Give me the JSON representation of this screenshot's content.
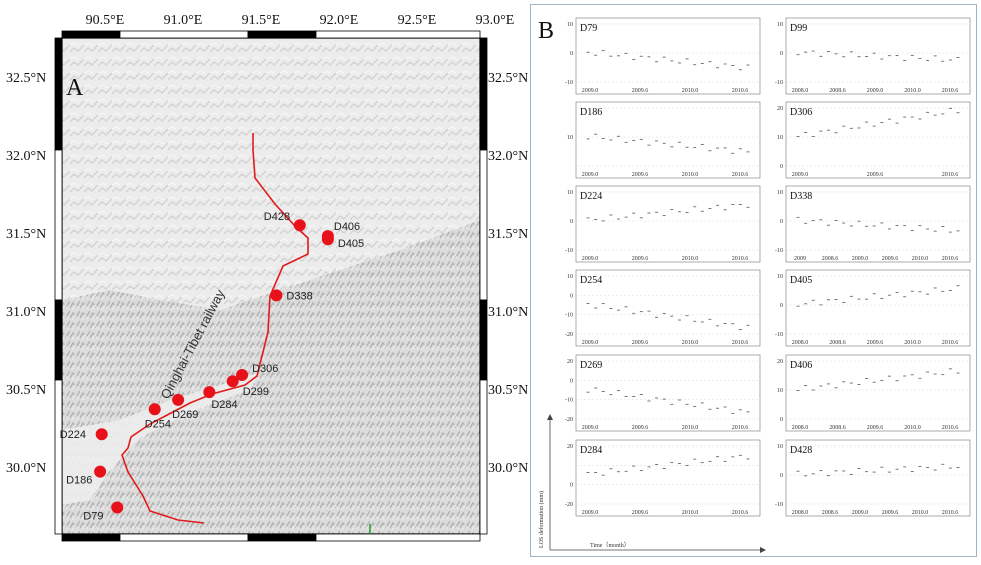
{
  "panel_a_label": "A",
  "panel_b_label": "B",
  "railway_label": "Qinghai-Tibet railway",
  "lon_labels": [
    "90.5°E",
    "91.0°E",
    "91.5°E",
    "92.0°E",
    "92.5°E",
    "93.0°E"
  ],
  "lat_labels": [
    "32.5°N",
    "32.0°N",
    "31.5°N",
    "31.0°N",
    "30.5°N",
    "30.0°N"
  ],
  "sites": [
    {
      "name": "D428",
      "lon": 91.8,
      "lat": 31.55
    },
    {
      "name": "D406",
      "lon": 91.98,
      "lat": 31.48
    },
    {
      "name": "D405",
      "lon": 91.98,
      "lat": 31.46
    },
    {
      "name": "D338",
      "lon": 91.65,
      "lat": 31.1
    },
    {
      "name": "D306",
      "lon": 91.43,
      "lat": 30.59
    },
    {
      "name": "D299",
      "lon": 91.37,
      "lat": 30.55
    },
    {
      "name": "D284",
      "lon": 91.22,
      "lat": 30.48
    },
    {
      "name": "D269",
      "lon": 91.02,
      "lat": 30.43
    },
    {
      "name": "D254",
      "lon": 90.87,
      "lat": 30.37
    },
    {
      "name": "D224",
      "lon": 90.53,
      "lat": 30.21
    },
    {
      "name": "D186",
      "lon": 90.52,
      "lat": 29.97
    },
    {
      "name": "D79",
      "lon": 90.63,
      "lat": 29.74
    }
  ],
  "ts_common": {
    "ylabel": "LOS deformation (mm)",
    "xlabel": "Time（month）"
  },
  "ts_charts": [
    {
      "name": "D79",
      "yticks": [
        "10",
        "0",
        "-10"
      ],
      "xticks": [
        "2009.0",
        "2009.6",
        "2010.0",
        "2010.6"
      ],
      "trend": -0.6
    },
    {
      "name": "D99",
      "yticks": [
        "10",
        "0",
        "-10"
      ],
      "xticks": [
        "2008.0",
        "2008.6",
        "2009.0",
        "2010.0",
        "2010.6"
      ],
      "trend": -0.3
    },
    {
      "name": "D186",
      "yticks": [
        "",
        "10",
        ""
      ],
      "xticks": [
        "2009.0",
        "2009.6",
        "2010.0",
        "2010.6"
      ],
      "trend": -0.6
    },
    {
      "name": "D306",
      "yticks": [
        "20",
        "10",
        "0"
      ],
      "xticks": [
        "2009.0",
        "2009.6",
        "2010.6"
      ],
      "trend": 1.0
    },
    {
      "name": "D224",
      "yticks": [
        "10",
        "0",
        "-10"
      ],
      "xticks": [
        "2009.0",
        "2009.6",
        "2010.0",
        "2010.6"
      ],
      "trend": 0.6
    },
    {
      "name": "D338",
      "yticks": [
        "10",
        "0",
        "-10"
      ],
      "xticks": [
        "2009",
        "2008.6",
        "2009.0",
        "2009.6",
        "2010.0",
        "2010.6"
      ],
      "trend": -0.4
    },
    {
      "name": "D254",
      "yticks": [
        "10",
        "0",
        "-10",
        "-20"
      ],
      "xticks": [
        "2009.0",
        "2009.6",
        "2010.0",
        "2010.6"
      ],
      "trend": -0.9
    },
    {
      "name": "D405",
      "yticks": [
        "10",
        "0",
        "-10"
      ],
      "xticks": [
        "2008.0",
        "2008.6",
        "2009.6",
        "2010.0",
        "2010.6"
      ],
      "trend": 0.6
    },
    {
      "name": "D269",
      "yticks": [
        "20",
        "0",
        "-10",
        "-20"
      ],
      "xticks": [
        "2009.0",
        "2009.6",
        "2010.0",
        "2010.6"
      ],
      "trend": -0.9
    },
    {
      "name": "D406",
      "yticks": [
        "20",
        "10",
        "0"
      ],
      "xticks": [
        "2008.0",
        "2008.6",
        "2009.6",
        "2010.0",
        "2010.6"
      ],
      "trend": 0.7
    },
    {
      "name": "D284",
      "yticks": [
        "20",
        "",
        "0",
        "-20"
      ],
      "xticks": [
        "2009.0",
        "2009.6",
        "2010.0",
        "2010.6"
      ],
      "trend": 0.7
    },
    {
      "name": "D428",
      "yticks": [
        "10",
        "0",
        "-10"
      ],
      "xticks": [
        "2008.0",
        "2008.6",
        "2009.0",
        "2009.6",
        "2010.0",
        "2010.6"
      ],
      "trend": 0.3
    }
  ]
}
